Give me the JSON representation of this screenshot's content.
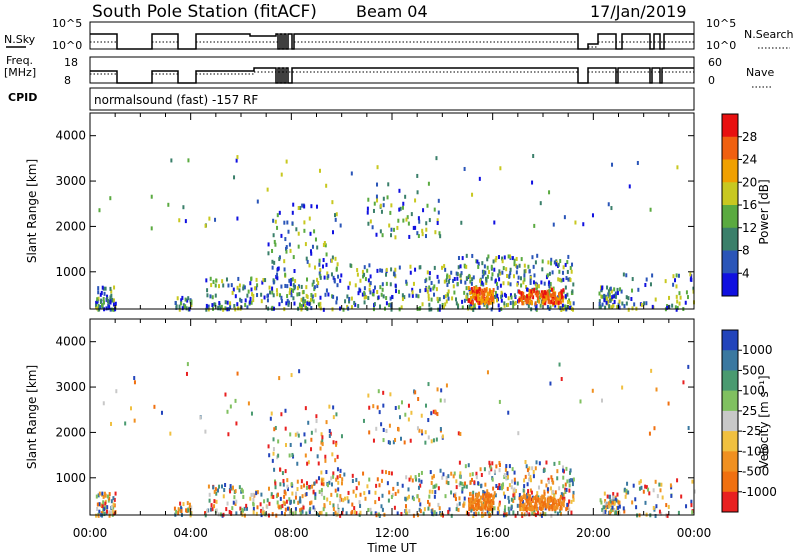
{
  "header": {
    "station": "South Pole Station (fitACF)",
    "beam": "Beam 04",
    "date": "17/Jan/2019"
  },
  "params": {
    "nsky_label": "N.Sky",
    "nsky_ticks": [
      "10^5",
      "10^0"
    ],
    "nsearch_label": "N.Search",
    "freq_label": "Freq.",
    "freq_unit": "[MHz]",
    "freq_ticks": [
      "18",
      "8"
    ],
    "nave_label": "Nave",
    "nave_ticks": [
      "60",
      "0"
    ],
    "cpid_label": "CPID",
    "cpid_value": "normalsound (fast) -157 RF"
  },
  "chart_data": [
    {
      "type": "heatmap",
      "name": "power",
      "ylabel": "Slant Range [km]",
      "ylim": [
        180,
        4500
      ],
      "yticks": [
        "1000",
        "2000",
        "3000",
        "4000"
      ],
      "xticks": [
        "00:00",
        "04:00",
        "08:00",
        "12:00",
        "16:00",
        "20:00",
        "00:00"
      ],
      "colorbar": {
        "label": "Power [dB]",
        "ticks": [
          "4",
          "8",
          "12",
          "16",
          "20",
          "24",
          "28"
        ],
        "colors": [
          "#1010e0",
          "#2a55b8",
          "#3a7f6a",
          "#5aaa40",
          "#c8c820",
          "#f0a000",
          "#f06010",
          "#e81010"
        ]
      }
    },
    {
      "type": "heatmap",
      "name": "velocity",
      "ylabel": "Slant Range [km]",
      "ylim": [
        180,
        4500
      ],
      "yticks": [
        "1000",
        "2000",
        "3000",
        "4000"
      ],
      "xticks": [
        "00:00",
        "04:00",
        "08:00",
        "12:00",
        "16:00",
        "20:00",
        "00:00"
      ],
      "xlabel": "Time UT",
      "colorbar": {
        "label": "Velocity [m s⁻¹]",
        "ticks": [
          "1000",
          "500",
          "100",
          "25",
          "-25",
          "-100",
          "-500",
          "-1000"
        ],
        "colors": [
          "#2244bb",
          "#3a78a0",
          "#4a9a70",
          "#80c060",
          "#c8c8c8",
          "#f0c040",
          "#f09020",
          "#f07010",
          "#e82020"
        ]
      }
    }
  ],
  "scatter_clusters": [
    {
      "t": [
        0.2,
        1.0
      ],
      "r": [
        200,
        700
      ],
      "n": 60
    },
    {
      "t": [
        3.3,
        4.0
      ],
      "r": [
        200,
        500
      ],
      "n": 30
    },
    {
      "t": [
        4.5,
        9.0
      ],
      "r": [
        200,
        900
      ],
      "n": 180
    },
    {
      "t": [
        7.0,
        10.0
      ],
      "r": [
        900,
        2600
      ],
      "n": 90
    },
    {
      "t": [
        9.0,
        14.5
      ],
      "r": [
        200,
        1200
      ],
      "n": 200
    },
    {
      "t": [
        11.0,
        14.0
      ],
      "r": [
        1800,
        3000
      ],
      "n": 60
    },
    {
      "t": [
        14.5,
        19.2
      ],
      "r": [
        200,
        1400
      ],
      "n": 320
    },
    {
      "t": [
        15.0,
        16.0
      ],
      "r": [
        350,
        700
      ],
      "n": 120,
      "hot": true
    },
    {
      "t": [
        17.0,
        18.8
      ],
      "r": [
        350,
        650
      ],
      "n": 140,
      "hot": true
    },
    {
      "t": [
        20.2,
        21.0
      ],
      "r": [
        250,
        700
      ],
      "n": 60
    },
    {
      "t": [
        21.0,
        24.0
      ],
      "r": [
        200,
        1000
      ],
      "n": 60
    },
    {
      "t": [
        0.3,
        24.0
      ],
      "r": [
        2000,
        3600
      ],
      "n": 60
    }
  ]
}
